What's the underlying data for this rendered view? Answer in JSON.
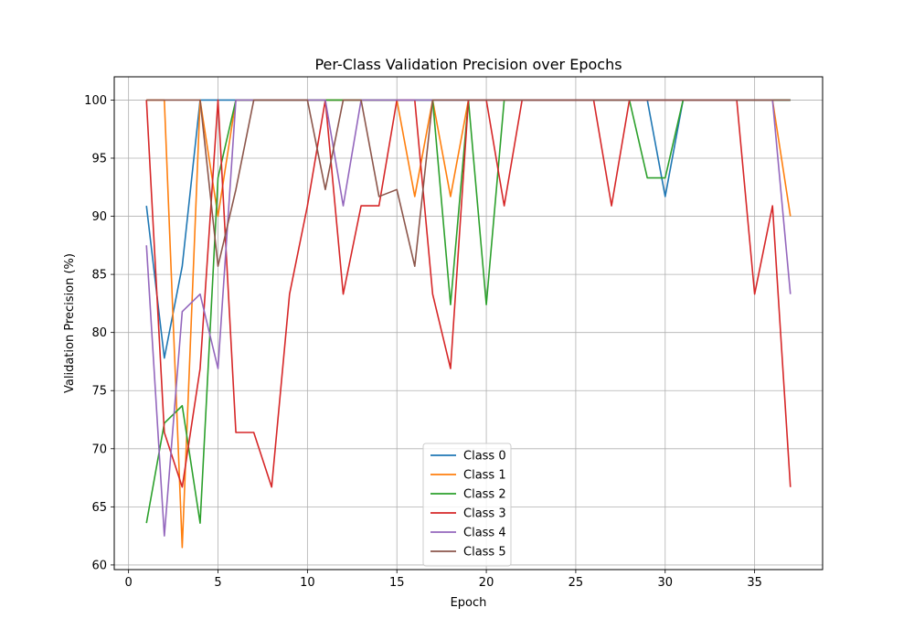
{
  "chart_data": {
    "type": "line",
    "title": "Per-Class Validation Precision over Epochs",
    "xlabel": "Epoch",
    "ylabel": "Validation Precision (%)",
    "xlim": [
      -0.8,
      38.8
    ],
    "ylim": [
      59.6,
      102
    ],
    "xticks": [
      0,
      5,
      10,
      15,
      20,
      25,
      30,
      35
    ],
    "yticks": [
      60,
      65,
      70,
      75,
      80,
      85,
      90,
      95,
      100
    ],
    "grid": true,
    "legend_position": "lower center",
    "x": [
      1,
      2,
      3,
      4,
      5,
      6,
      7,
      8,
      9,
      10,
      11,
      12,
      13,
      14,
      15,
      16,
      17,
      18,
      19,
      20,
      21,
      22,
      23,
      24,
      25,
      26,
      27,
      28,
      29,
      30,
      31,
      32,
      33,
      34,
      35,
      36,
      37
    ],
    "series": [
      {
        "name": "Class 0",
        "color": "#1f77b4",
        "values": [
          90.9,
          77.8,
          85.7,
          100,
          100,
          100,
          100,
          100,
          100,
          100,
          100,
          100,
          100,
          100,
          100,
          100,
          100,
          100,
          100,
          100,
          100,
          100,
          100,
          100,
          100,
          100,
          100,
          100,
          100,
          91.7,
          100,
          100,
          100,
          100,
          100,
          100,
          100
        ]
      },
      {
        "name": "Class 1",
        "color": "#ff7f0e",
        "values": [
          100,
          100,
          61.5,
          100,
          90,
          100,
          100,
          100,
          100,
          100,
          100,
          100,
          100,
          100,
          100,
          91.7,
          100,
          91.7,
          100,
          100,
          100,
          100,
          100,
          100,
          100,
          100,
          100,
          100,
          100,
          100,
          100,
          100,
          100,
          100,
          100,
          100,
          90
        ]
      },
      {
        "name": "Class 2",
        "color": "#2ca02c",
        "values": [
          63.6,
          72.2,
          73.7,
          63.6,
          93.3,
          100,
          100,
          100,
          100,
          100,
          100,
          100,
          100,
          100,
          100,
          100,
          100,
          82.4,
          100,
          82.4,
          100,
          100,
          100,
          100,
          100,
          100,
          100,
          100,
          93.3,
          93.3,
          100,
          100,
          100,
          100,
          100,
          100,
          100
        ]
      },
      {
        "name": "Class 3",
        "color": "#d62728",
        "values": [
          100,
          71.4,
          66.7,
          76.9,
          100,
          71.4,
          71.4,
          66.7,
          83.3,
          90.9,
          100,
          83.3,
          90.9,
          90.9,
          100,
          100,
          83.3,
          76.9,
          100,
          100,
          90.9,
          100,
          100,
          100,
          100,
          100,
          90.9,
          100,
          100,
          100,
          100,
          100,
          100,
          100,
          83.3,
          90.9,
          66.7
        ]
      },
      {
        "name": "Class 4",
        "color": "#9467bd",
        "values": [
          87.5,
          62.5,
          81.8,
          83.3,
          76.9,
          100,
          100,
          100,
          100,
          100,
          100,
          90.9,
          100,
          100,
          100,
          100,
          100,
          100,
          100,
          100,
          100,
          100,
          100,
          100,
          100,
          100,
          100,
          100,
          100,
          100,
          100,
          100,
          100,
          100,
          100,
          100,
          83.3
        ]
      },
      {
        "name": "Class 5",
        "color": "#8c564b",
        "values": [
          100,
          100,
          100,
          100,
          85.7,
          92.3,
          100,
          100,
          100,
          100,
          92.3,
          100,
          100,
          91.7,
          92.3,
          85.7,
          100,
          100,
          100,
          100,
          100,
          100,
          100,
          100,
          100,
          100,
          100,
          100,
          100,
          100,
          100,
          100,
          100,
          100,
          100,
          100,
          100
        ]
      }
    ]
  }
}
